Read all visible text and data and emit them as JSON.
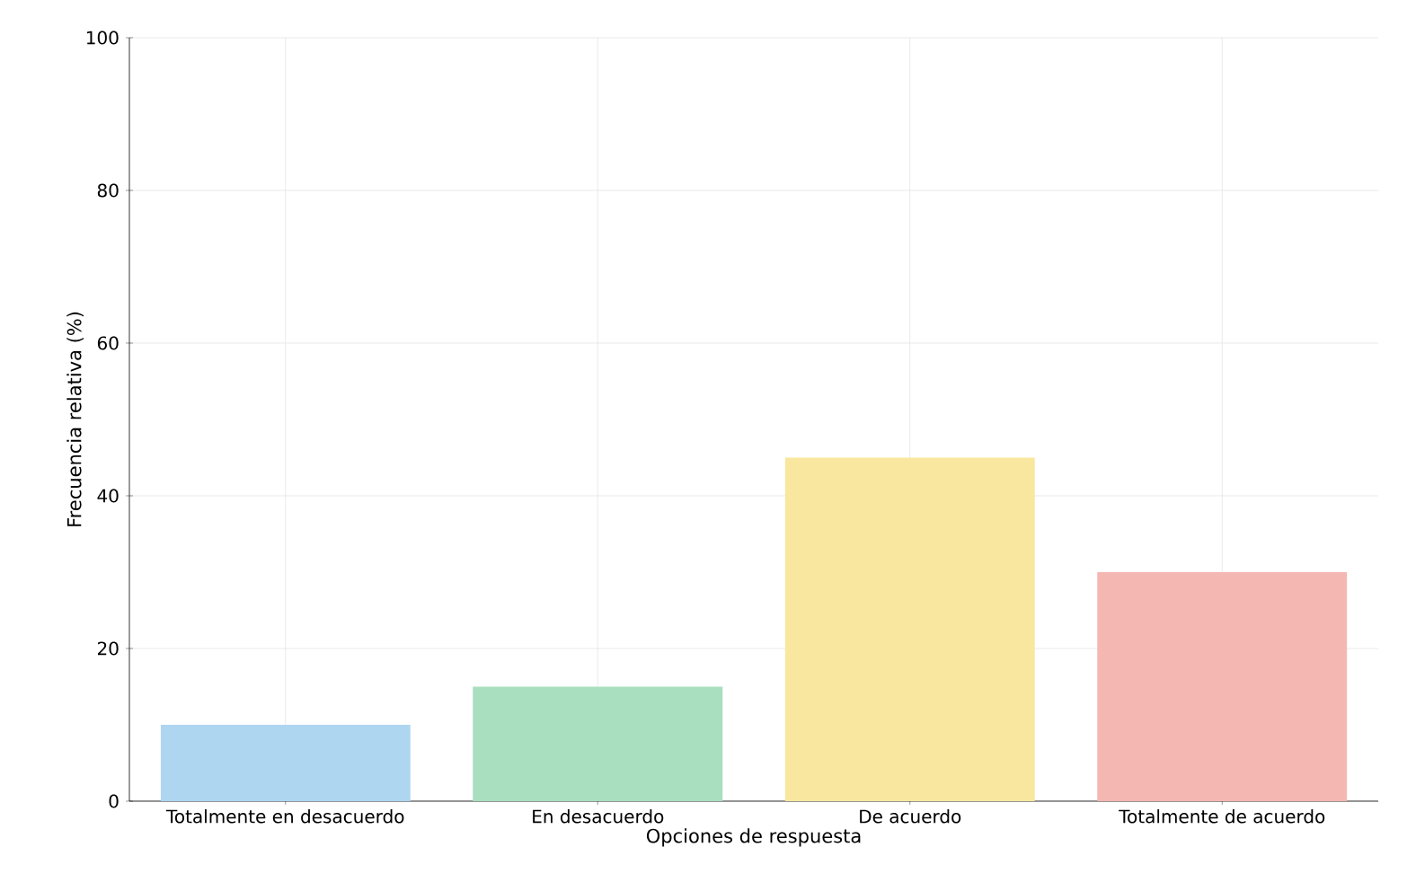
{
  "chart_data": {
    "type": "bar",
    "xlabel": "Opciones de respuesta",
    "ylabel": "Frecuencia relativa (%)",
    "categories": [
      "Totalmente en desacuerdo",
      "En desacuerdo",
      "De acuerdo",
      "Totalmente de acuerdo"
    ],
    "values": [
      10,
      15,
      45,
      30
    ],
    "colors": [
      "#aed6f1",
      "#a9dfbf",
      "#f9e79f",
      "#f5b7b1"
    ],
    "ylim": [
      0,
      100
    ],
    "yticks": [
      0,
      20,
      40,
      60,
      80,
      100
    ],
    "grid": true
  }
}
